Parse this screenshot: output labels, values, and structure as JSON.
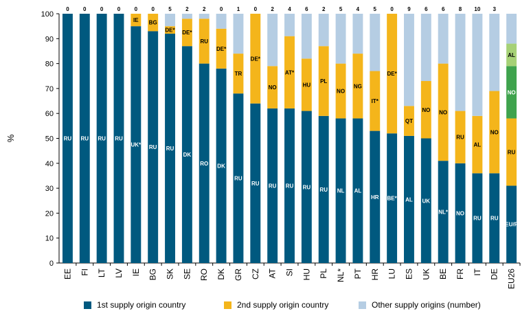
{
  "chart_data": {
    "type": "stacked-bar",
    "ylabel": "%",
    "ylim": [
      0,
      100
    ],
    "yticks": [
      0,
      10,
      20,
      30,
      40,
      50,
      60,
      70,
      80,
      90,
      100
    ],
    "colors": {
      "first": "#00597f",
      "second": "#f4b51b",
      "other": "#b5cde3",
      "eu_third": "#3fa34d",
      "eu_fourth": "#a6d176"
    },
    "series_names": [
      "1st supply origin country",
      "2nd supply origin country",
      "Other supply origins (number)"
    ],
    "categories": [
      "EE",
      "FI",
      "LT",
      "LV",
      "IE",
      "BG",
      "SK",
      "SE",
      "RO",
      "DK",
      "GR",
      "CZ",
      "AT",
      "SI",
      "HU",
      "PL",
      "NL*",
      "PT",
      "HR",
      "LU",
      "ES",
      "UK",
      "BE",
      "FR",
      "IT",
      "DE",
      "EU26"
    ],
    "first_values": [
      100,
      100,
      100,
      100,
      95,
      93,
      92,
      87,
      80,
      78,
      68,
      64,
      62,
      62,
      61,
      59,
      58,
      58,
      53,
      52,
      51,
      50,
      41,
      40,
      36,
      36,
      31
    ],
    "first_labels": [
      "RU",
      "RU",
      "RU",
      "RU",
      "UK*",
      "RU",
      "RU",
      "DK",
      "RO",
      "DK",
      "RU",
      "RU",
      "RU",
      "RU",
      "RU",
      "RU",
      "NL",
      "AL",
      "HR",
      "BE*",
      "AL",
      "UK",
      "NL*",
      "NO",
      "RU",
      "RU",
      "EU/P"
    ],
    "second_values": [
      0,
      0,
      0,
      0,
      5,
      7,
      3,
      11,
      18,
      16,
      16,
      36,
      17,
      29,
      21,
      28,
      22,
      26,
      24,
      48,
      12,
      23,
      39,
      21,
      23,
      33,
      27
    ],
    "second_labels": [
      "",
      "",
      "",
      "",
      "IE",
      "BG",
      "DE*",
      "DE*",
      "RU",
      "DE*",
      "TR",
      "DE*",
      "NO",
      "AT*",
      "HU",
      "PL",
      "NO",
      "NG",
      "IT*",
      "DE*",
      "QT",
      "NO",
      "NO",
      "RU",
      "AL",
      "NO",
      "RU"
    ],
    "eu_extra": {
      "third_value": 21,
      "third_label": "NO",
      "fourth_value": 9,
      "fourth_label": "AL"
    },
    "other_counts": [
      "0",
      "0",
      "0",
      "0",
      "0",
      "0",
      "5",
      "2",
      "2",
      "0",
      "1",
      "0",
      "2",
      "4",
      "6",
      "2",
      "5",
      "4",
      "5",
      "0",
      "9",
      "6",
      "6",
      "8",
      "10",
      "3",
      ""
    ]
  }
}
